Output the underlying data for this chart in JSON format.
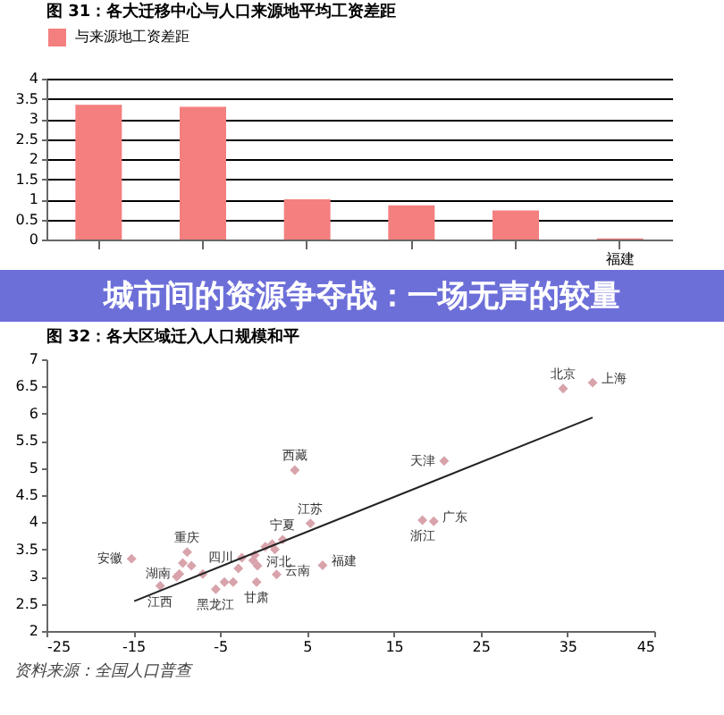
{
  "chart_data": [
    {
      "type": "bar",
      "title": "图 31：各大迁移中心与人口来源地平均工资差距",
      "categories": [
        null,
        null,
        null,
        null,
        null,
        "福建"
      ],
      "series": [
        {
          "name": "与来源地工资差距",
          "color": "#f47f7f",
          "values": [
            3.35,
            3.3,
            1.0,
            0.85,
            0.72,
            0.03
          ]
        }
      ],
      "ylim": [
        0,
        4
      ],
      "yticks": [
        0,
        0.5,
        1,
        1.5,
        2,
        2.5,
        3,
        3.5,
        4
      ],
      "grid": "y",
      "legend": "top",
      "annotations": [
        "城市间的资源争夺战：一场无声的较量"
      ]
    },
    {
      "type": "scatter",
      "title": "图 32：各大区域迁入人口规模和平",
      "series": [
        {
          "type": "scatter",
          "color": "#d8a3ab",
          "marker": "diamond",
          "x": [
            -15.2,
            -11.9,
            -10,
            -9.7,
            -9.3,
            -8.8,
            -8.3,
            -7,
            -5.5,
            -4.5,
            -3.5,
            -2.9,
            -2.5,
            -1.2,
            -1,
            -0.8,
            -0.7,
            0.2,
            1,
            1.3,
            2.2,
            1.5,
            3.6,
            5.4,
            6.8,
            18.3,
            19.6,
            20.8,
            34.5,
            37.9
          ],
          "values": [
            3.33,
            2.83,
            3.0,
            3.05,
            3.25,
            3.45,
            3.2,
            3.05,
            2.77,
            2.9,
            2.9,
            3.15,
            3.35,
            3.3,
            3.4,
            2.9,
            3.2,
            3.55,
            3.6,
            3.5,
            3.68,
            3.04,
            4.96,
            3.98,
            3.21,
            4.04,
            4.02,
            5.13,
            6.46,
            6.57
          ]
        },
        {
          "type": "line",
          "color": "#222222",
          "x": [
            -14.9,
            37.9
          ],
          "values": [
            2.55,
            5.93
          ]
        }
      ],
      "xlim": [
        -25,
        45
      ],
      "xticks": [
        -25,
        -15,
        -5,
        5,
        15,
        25,
        35,
        45
      ],
      "ylim": [
        2,
        7
      ],
      "yticks": [
        2,
        2.5,
        3,
        3.5,
        4,
        4.5,
        5,
        5.5,
        6,
        6.5,
        7
      ],
      "annotations": [
        {
          "text": "重庆",
          "x": -8.8,
          "y": 3.45
        },
        {
          "text": "云南",
          "x": 1.5,
          "y": 3.04
        },
        {
          "text": "江西",
          "x": -11.9,
          "y": 2.83
        },
        {
          "text": "湖南",
          "x": -9.7,
          "y": 3.05
        },
        {
          "text": "江苏",
          "x": 5.4,
          "y": 3.98
        },
        {
          "text": "河北",
          "x": -0.7,
          "y": 3.2
        },
        {
          "text": "黑龙江",
          "x": -5.5,
          "y": 2.77
        },
        {
          "text": "四川",
          "x": -2.5,
          "y": 3.35
        },
        {
          "text": "宁夏",
          "x": 2.2,
          "y": 3.68
        },
        {
          "text": "福建",
          "x": 6.8,
          "y": 3.21
        },
        {
          "text": "甘肃",
          "x": -0.8,
          "y": 2.9
        },
        {
          "text": "安徽",
          "x": -15.2,
          "y": 3.33
        },
        {
          "text": "西藏",
          "x": 3.6,
          "y": 4.96
        },
        {
          "text": "广东",
          "x": 19.6,
          "y": 4.02
        },
        {
          "text": "浙江",
          "x": 18.3,
          "y": 4.04
        },
        {
          "text": "天津",
          "x": 20.8,
          "y": 5.13
        },
        {
          "text": "北京",
          "x": 34.5,
          "y": 6.46
        },
        {
          "text": "上海",
          "x": 37.9,
          "y": 6.57
        },
        "资料来源：全国人口普查"
      ]
    }
  ]
}
